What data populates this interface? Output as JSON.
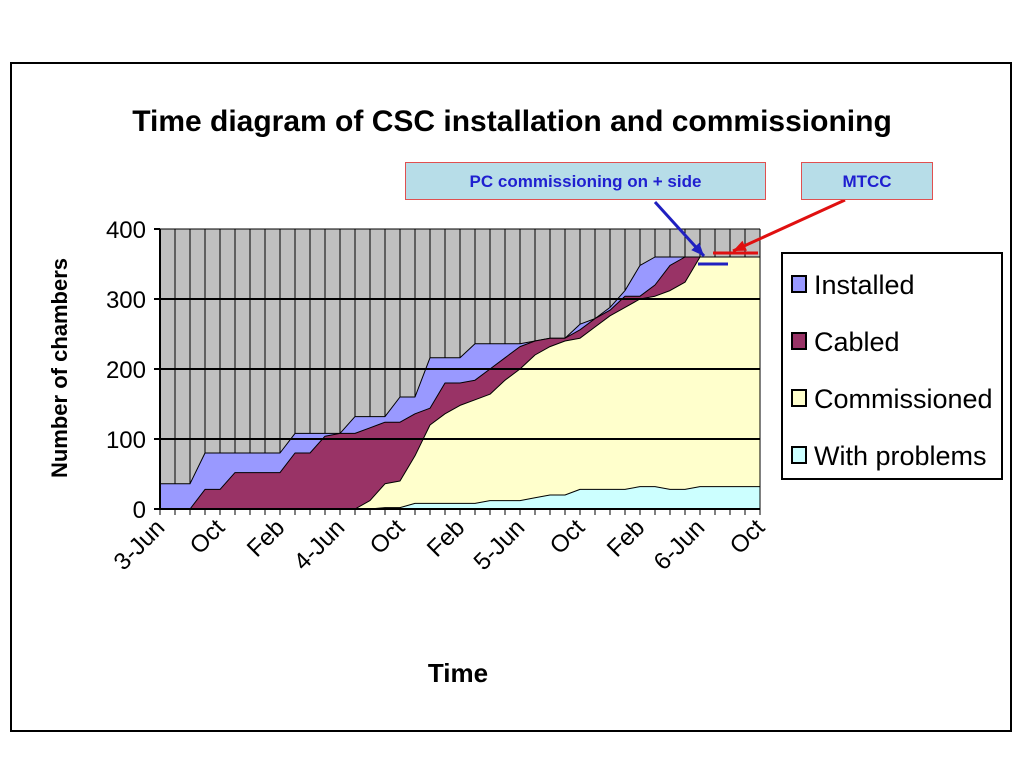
{
  "chart_data": {
    "type": "area",
    "title": "Time diagram of CSC installation and commissioning",
    "xlabel": "Time",
    "ylabel": "Number of chambers",
    "ylim": [
      0,
      400
    ],
    "yticks": [
      0,
      100,
      200,
      300,
      400
    ],
    "grid": true,
    "legend_position": "right",
    "x_tick_labels": [
      "3-Jun",
      "Oct",
      "Feb",
      "4-Jun",
      "Oct",
      "Feb",
      "5-Jun",
      "Oct",
      "Feb",
      "6-Jun",
      "Oct"
    ],
    "x_tick_indices": [
      0,
      4,
      8,
      12,
      16,
      20,
      24,
      28,
      32,
      36,
      40
    ],
    "x": [
      "2003-06",
      "2003-07",
      "2003-08",
      "2003-09",
      "2003-10",
      "2003-11",
      "2003-12",
      "2004-01",
      "2004-02",
      "2004-03",
      "2004-04",
      "2004-05",
      "2004-06",
      "2004-07",
      "2004-08",
      "2004-09",
      "2004-10",
      "2004-11",
      "2004-12",
      "2005-01",
      "2005-02",
      "2005-03",
      "2005-04",
      "2005-05",
      "2005-06",
      "2005-07",
      "2005-08",
      "2005-09",
      "2005-10",
      "2005-11",
      "2005-12",
      "2006-01",
      "2006-02",
      "2006-03",
      "2006-04",
      "2006-05",
      "2006-06",
      "2006-07",
      "2006-08",
      "2006-09",
      "2006-10"
    ],
    "series": [
      {
        "name": "Installed",
        "color": "#9999ff",
        "values": [
          36,
          36,
          36,
          80,
          80,
          80,
          80,
          80,
          80,
          108,
          108,
          108,
          108,
          132,
          132,
          132,
          160,
          160,
          216,
          216,
          216,
          236,
          236,
          236,
          236,
          240,
          244,
          244,
          264,
          272,
          288,
          312,
          348,
          360,
          360,
          360,
          360,
          360,
          360,
          360,
          360
        ]
      },
      {
        "name": "Cabled",
        "color": "#993366",
        "values": [
          0,
          0,
          0,
          28,
          28,
          52,
          52,
          52,
          52,
          80,
          80,
          104,
          108,
          108,
          116,
          124,
          124,
          136,
          144,
          180,
          180,
          184,
          200,
          216,
          232,
          240,
          244,
          244,
          256,
          272,
          284,
          304,
          304,
          320,
          348,
          360,
          360,
          360,
          360,
          360,
          360
        ]
      },
      {
        "name": "Commissioned",
        "color": "#ffffcc",
        "values": [
          0,
          0,
          0,
          0,
          0,
          0,
          0,
          0,
          0,
          0,
          0,
          0,
          0,
          0,
          12,
          36,
          40,
          76,
          120,
          136,
          148,
          156,
          164,
          184,
          200,
          220,
          232,
          240,
          244,
          260,
          276,
          288,
          300,
          304,
          312,
          324,
          360,
          360,
          360,
          360,
          360
        ]
      },
      {
        "name": "With problems",
        "color": "#ccffff",
        "values": [
          0,
          0,
          0,
          0,
          0,
          0,
          0,
          0,
          0,
          0,
          0,
          0,
          0,
          0,
          0,
          2,
          2,
          8,
          8,
          8,
          8,
          8,
          12,
          12,
          12,
          16,
          20,
          20,
          28,
          28,
          28,
          28,
          32,
          32,
          28,
          28,
          32,
          32,
          32,
          32,
          32
        ]
      }
    ]
  },
  "annotations": [
    {
      "text": "PC commissioning on + side",
      "color": "#2020c0",
      "points_to": "2006-06"
    },
    {
      "text": "MTCC",
      "color": "#e01010",
      "points_to": "2006-07"
    }
  ],
  "colors": {
    "plot_background": "#c0c0c0",
    "gridline": "#000000",
    "callout_background": "#b7dde8",
    "callout_border": "#e05050"
  }
}
